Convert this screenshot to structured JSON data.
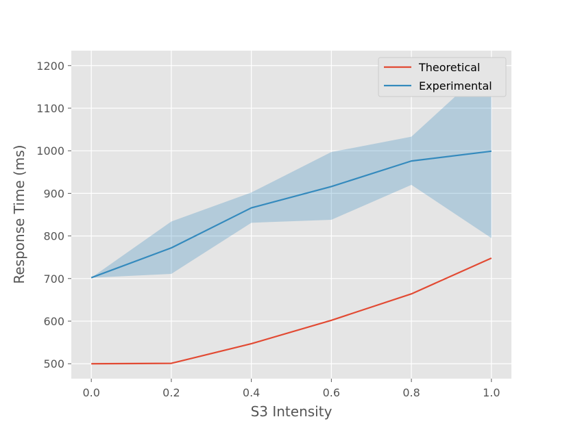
{
  "chart_data": {
    "type": "line",
    "title": "",
    "xlabel": "S3 Intensity",
    "ylabel": "Response Time (ms)",
    "x": [
      0.0,
      0.2,
      0.4,
      0.6,
      0.8,
      1.0
    ],
    "xticks": [
      "0.0",
      "0.2",
      "0.4",
      "0.6",
      "0.8",
      "1.0"
    ],
    "yticks": [
      "500",
      "600",
      "700",
      "800",
      "900",
      "1000",
      "1100",
      "1200"
    ],
    "xlim": [
      -0.05,
      1.05
    ],
    "ylim": [
      465,
      1235
    ],
    "grid": true,
    "legend_position": "top-right",
    "series": [
      {
        "name": "Theoretical",
        "color": "#E24A33",
        "values": [
          500,
          501,
          547,
          602,
          664,
          748
        ]
      },
      {
        "name": "Experimental",
        "color": "#348ABD",
        "values": [
          702,
          772,
          866,
          916,
          976,
          999
        ],
        "band_lower": [
          702,
          711,
          831,
          838,
          920,
          795
        ],
        "band_upper": [
          702,
          834,
          902,
          997,
          1033,
          1205
        ],
        "band_color": "#348ABD"
      }
    ]
  }
}
